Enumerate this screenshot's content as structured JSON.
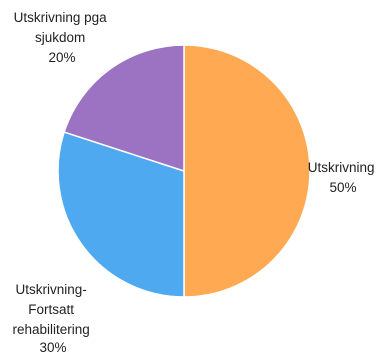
{
  "chart_data": {
    "type": "pie",
    "title": "",
    "start_angle_deg": 0,
    "direction": "clockwise",
    "slices": [
      {
        "label_lines": [
          "Utskrivning",
          "50%"
        ],
        "value": 50,
        "color": "#FFA953"
      },
      {
        "label_lines": [
          "Utskrivning-",
          "Fortsatt",
          "rehabilitering",
          "30%"
        ],
        "value": 30,
        "color": "#4EA9F0"
      },
      {
        "label_lines": [
          "Utskrivning pga",
          "sjukdom",
          "20%"
        ],
        "value": 20,
        "color": "#9C72C2"
      }
    ]
  }
}
